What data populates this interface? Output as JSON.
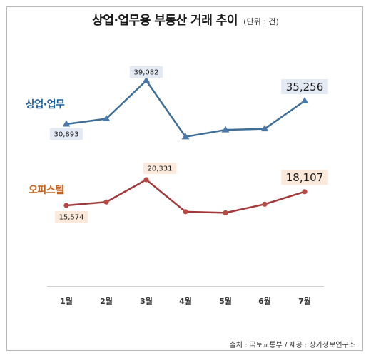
{
  "title": "상업·업무용 부동산 거래 추이",
  "unit": "(단위 : 건)",
  "source": "출처 : 국토교통부 / 제공 : 상가정보연구소",
  "colors": {
    "series1": "#3f6e96",
    "series1_marker": "#4a78a8",
    "series1_label": "#1f5f9c",
    "series1_callout_bg": "#e4eaf4",
    "series2": "#a13a3a",
    "series2_marker": "#b84a44",
    "series2_label": "#c5621b",
    "series2_callout_bg": "#fbe9db",
    "axis": "#a0a0a0"
  },
  "chart_data": {
    "type": "line",
    "title": "상업·업무용 부동산 거래 추이",
    "categories": [
      "1월",
      "2월",
      "3월",
      "4월",
      "5월",
      "6월",
      "7월"
    ],
    "series": [
      {
        "name": "상업·업무",
        "values": [
          30893,
          31900,
          39082,
          28500,
          29800,
          30000,
          35256
        ],
        "data_labels": {
          "0": "30,893",
          "2": "39,082",
          "6": "35,256"
        }
      },
      {
        "name": "오피스텔",
        "values": [
          15574,
          16200,
          20331,
          14400,
          14200,
          15800,
          18107
        ],
        "data_labels": {
          "0": "15,574",
          "2": "20,331",
          "6": "18,107"
        }
      }
    ],
    "grid": false,
    "legend": "inline-left",
    "y_axis_shown": false
  }
}
